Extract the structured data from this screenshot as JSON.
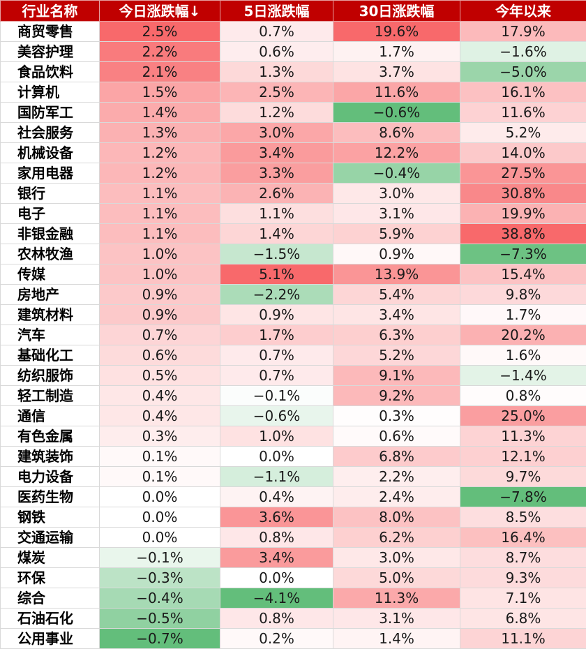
{
  "table": {
    "headers": [
      "行业名称",
      "今日涨跌幅↓",
      "5日涨跌幅",
      "30日涨跌幅",
      "今年以来"
    ],
    "rows": [
      [
        "商贸零售",
        "2.5%",
        "0.7%",
        "19.6%",
        "17.9%"
      ],
      [
        "美容护理",
        "2.2%",
        "0.6%",
        "1.7%",
        "−1.6%"
      ],
      [
        "食品饮料",
        "2.1%",
        "1.3%",
        "3.7%",
        "−5.0%"
      ],
      [
        "计算机",
        "1.5%",
        "2.5%",
        "11.6%",
        "16.1%"
      ],
      [
        "国防军工",
        "1.4%",
        "1.2%",
        "−0.6%",
        "11.6%"
      ],
      [
        "社会服务",
        "1.3%",
        "3.0%",
        "8.6%",
        "5.2%"
      ],
      [
        "机械设备",
        "1.2%",
        "3.4%",
        "12.2%",
        "14.0%"
      ],
      [
        "家用电器",
        "1.2%",
        "3.3%",
        "−0.4%",
        "27.5%"
      ],
      [
        "银行",
        "1.1%",
        "2.6%",
        "3.0%",
        "30.8%"
      ],
      [
        "电子",
        "1.1%",
        "1.1%",
        "3.1%",
        "19.9%"
      ],
      [
        "非银金融",
        "1.1%",
        "1.4%",
        "5.9%",
        "38.8%"
      ],
      [
        "农林牧渔",
        "1.0%",
        "−1.5%",
        "0.9%",
        "−7.3%"
      ],
      [
        "传媒",
        "1.0%",
        "5.1%",
        "13.9%",
        "15.4%"
      ],
      [
        "房地产",
        "0.9%",
        "−2.2%",
        "5.4%",
        "9.8%"
      ],
      [
        "建筑材料",
        "0.9%",
        "0.9%",
        "3.4%",
        "1.7%"
      ],
      [
        "汽车",
        "0.7%",
        "1.7%",
        "6.3%",
        "20.2%"
      ],
      [
        "基础化工",
        "0.6%",
        "0.7%",
        "5.2%",
        "1.6%"
      ],
      [
        "纺织服饰",
        "0.5%",
        "0.7%",
        "9.1%",
        "−1.4%"
      ],
      [
        "轻工制造",
        "0.4%",
        "−0.1%",
        "9.2%",
        "0.8%"
      ],
      [
        "通信",
        "0.4%",
        "−0.6%",
        "0.3%",
        "25.0%"
      ],
      [
        "有色金属",
        "0.3%",
        "1.0%",
        "0.6%",
        "11.3%"
      ],
      [
        "建筑装饰",
        "0.1%",
        "0.0%",
        "6.8%",
        "12.1%"
      ],
      [
        "电力设备",
        "0.1%",
        "−1.1%",
        "2.2%",
        "9.7%"
      ],
      [
        "医药生物",
        "0.0%",
        "0.4%",
        "2.4%",
        "−7.8%"
      ],
      [
        "钢铁",
        "0.0%",
        "3.6%",
        "8.0%",
        "8.5%"
      ],
      [
        "交通运输",
        "0.0%",
        "0.8%",
        "6.2%",
        "16.4%"
      ],
      [
        "煤炭",
        "−0.1%",
        "3.4%",
        "3.0%",
        "8.7%"
      ],
      [
        "环保",
        "−0.3%",
        "0.0%",
        "5.0%",
        "9.3%"
      ],
      [
        "综合",
        "−0.4%",
        "−4.1%",
        "11.3%",
        "7.1%"
      ],
      [
        "石油石化",
        "−0.5%",
        "0.8%",
        "3.1%",
        "6.8%"
      ],
      [
        "公用事业",
        "−0.7%",
        "0.2%",
        "1.4%",
        "11.1%"
      ]
    ]
  },
  "colors": {
    "header_bg": "#c00000",
    "header_text": "#ffffff",
    "positive_max": "#f8696b",
    "negative_max": "#63be7b",
    "neutral": "#ffffff"
  }
}
